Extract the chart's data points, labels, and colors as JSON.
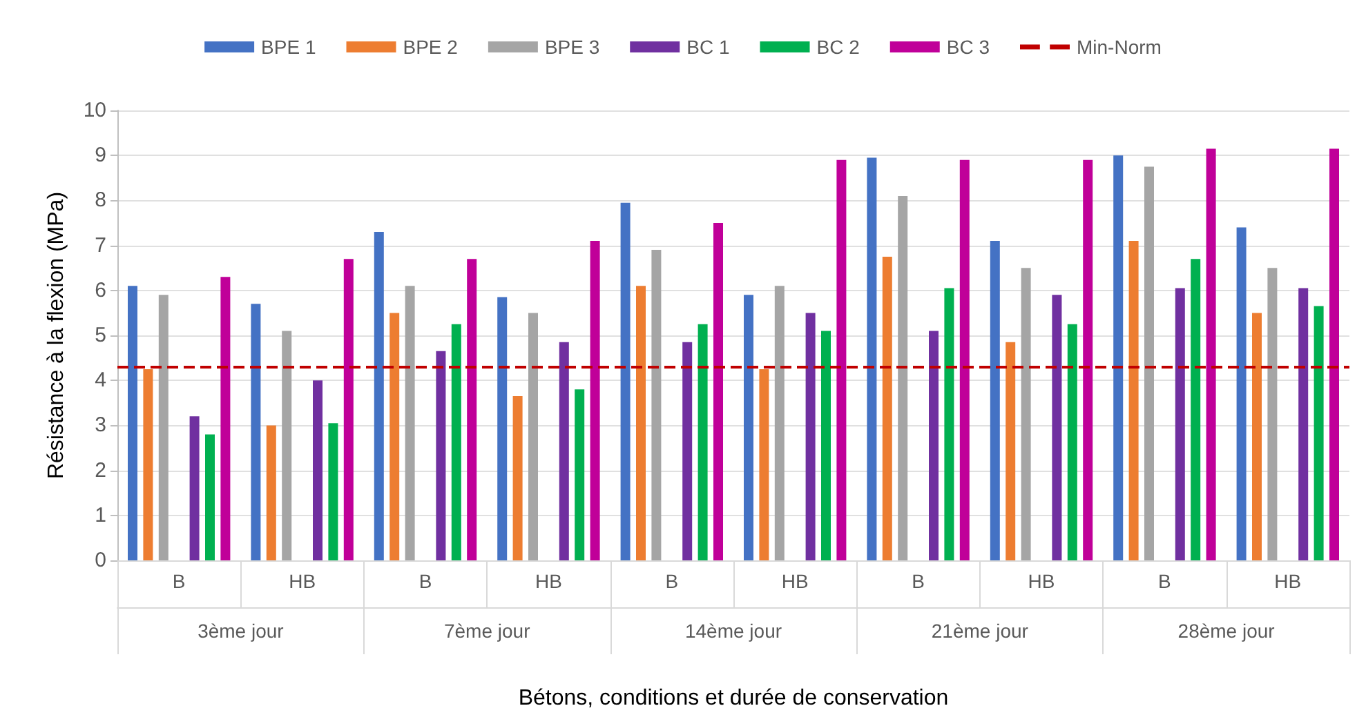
{
  "chart_data": {
    "type": "bar",
    "xlabel": "Bétons, conditions et durée de conservation",
    "ylabel": "Résistance à la flexion (MPa)",
    "categories": [
      "B",
      "HB",
      "B",
      "HB",
      "B",
      "HB",
      "B",
      "HB",
      "B",
      "HB"
    ],
    "annotations": [
      "3ème jour",
      "7ème jour",
      "14ème jour",
      "21ème jour",
      "28ème jour"
    ],
    "series": [
      {
        "name": "BPE 1",
        "color": "#4472c4",
        "values": [
          6.1,
          5.7,
          7.3,
          5.85,
          7.95,
          5.9,
          8.95,
          7.1,
          9.0,
          7.4
        ]
      },
      {
        "name": "BPE 2",
        "color": "#ed7d31",
        "values": [
          4.25,
          3.0,
          5.5,
          3.65,
          6.1,
          4.25,
          6.75,
          4.85,
          7.1,
          5.5
        ]
      },
      {
        "name": "BPE 3",
        "color": "#a5a5a5",
        "values": [
          5.9,
          5.1,
          6.1,
          5.5,
          6.9,
          6.1,
          8.1,
          6.5,
          8.75,
          6.5
        ]
      },
      {
        "color": "#ffc000",
        "values": [
          null,
          null,
          null,
          null,
          null,
          null,
          null,
          null,
          null,
          null
        ]
      },
      {
        "name": "BC 1",
        "color": "#7030a0",
        "values": [
          3.2,
          4.0,
          4.65,
          4.85,
          4.85,
          5.5,
          5.1,
          5.9,
          6.05,
          6.05
        ]
      },
      {
        "name": "BC 2",
        "color": "#00b050",
        "values": [
          2.8,
          3.05,
          5.25,
          3.8,
          5.25,
          5.1,
          6.05,
          5.25,
          6.7,
          5.65
        ]
      },
      {
        "name": "BC 3",
        "color": "#c00099",
        "values": [
          6.3,
          6.7,
          6.7,
          7.1,
          7.5,
          8.9,
          8.9,
          8.9,
          9.15,
          9.15
        ]
      }
    ],
    "ref_lines": [
      {
        "axis": "y",
        "value": 4.3,
        "label": "Min-Norm",
        "color": "#c00000",
        "line_style": "dashed"
      }
    ],
    "ylim": [
      0,
      10
    ],
    "yticks": [
      0,
      1,
      2,
      3,
      4,
      5,
      6,
      7,
      8,
      9,
      10
    ],
    "grid": "y",
    "legend": "top"
  }
}
